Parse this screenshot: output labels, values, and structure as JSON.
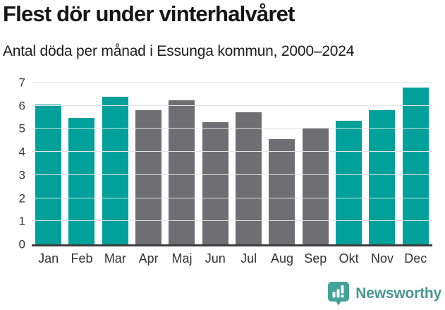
{
  "header": {
    "title": "Flest dör under vinterhalvåret",
    "subtitle": "Antal döda per månad i Essunga kommun, 2000–2024"
  },
  "chart_data": {
    "type": "bar",
    "title": "Flest dör under vinterhalvåret",
    "subtitle": "Antal döda per månad i Essunga kommun, 2000–2024",
    "categories": [
      "Jan",
      "Feb",
      "Mar",
      "Apr",
      "Maj",
      "Jun",
      "Jul",
      "Aug",
      "Sep",
      "Okt",
      "Nov",
      "Dec"
    ],
    "values": [
      6.04,
      5.48,
      6.4,
      5.8,
      6.24,
      5.28,
      5.72,
      4.56,
      5.0,
      5.36,
      5.8,
      6.8
    ],
    "groups": [
      "winter",
      "winter",
      "winter",
      "summer",
      "summer",
      "summer",
      "summer",
      "summer",
      "summer",
      "winter",
      "winter",
      "winter"
    ],
    "group_colors": {
      "winter": "#00a09b",
      "summer": "#6e6e73"
    },
    "xlabel": "",
    "ylabel": "",
    "ylim": [
      0,
      7
    ],
    "yticks": [
      0,
      1,
      2,
      3,
      4,
      5,
      6,
      7
    ],
    "grid": "horizontal",
    "legend": "none"
  },
  "footer": {
    "brand": "Newsworthy",
    "logo_icon": "bar-chart-speech-bubble"
  },
  "colors": {
    "winter_bar": "#00a09b",
    "summer_bar": "#6e6e73",
    "axis_line": "#3e3e3e",
    "gridline": "#e4e4e4",
    "tick_label": "#3a3a3a",
    "title_text": "#151515",
    "brand_teal": "#47978f",
    "logo_icon_teal": "#45a29a",
    "background": "#ffffff"
  }
}
